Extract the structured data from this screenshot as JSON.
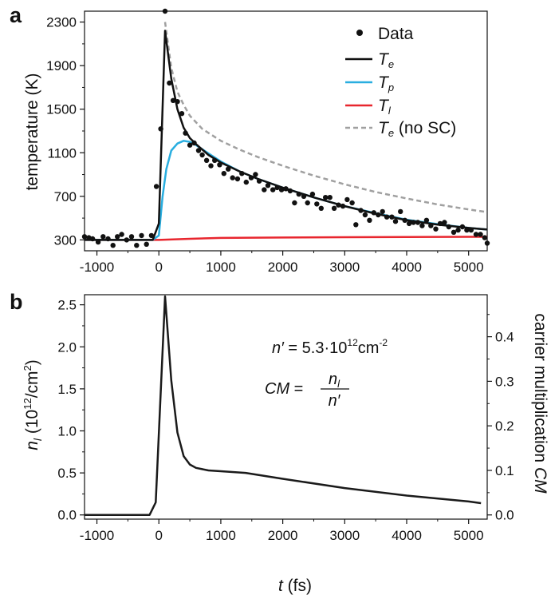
{
  "chart_data": [
    {
      "panel": "a",
      "type": "line",
      "xlabel": "",
      "ylabel": "temperature  (K)",
      "xlim": [
        -1200,
        5300
      ],
      "ylim": [
        200,
        2400
      ],
      "xticks": [
        -1000,
        0,
        1000,
        2000,
        3000,
        4000,
        5000
      ],
      "xtick_labels": [
        "-1000",
        "0",
        "1000",
        "2000",
        "3000",
        "4000",
        "5000"
      ],
      "yticks": [
        300,
        700,
        1100,
        1500,
        1900,
        2300
      ],
      "ytick_labels": [
        "300",
        "700",
        "1100",
        "1500",
        "1900",
        "2300"
      ],
      "legend_position": "top-right",
      "legend": {
        "data": "Data",
        "te_sym": "T",
        "te_sub": "e",
        "tp_sym": "T",
        "tp_sub": "p",
        "tl_sym": "T",
        "tl_sub": "l",
        "tens_sym": "T",
        "tens_sub": "e",
        "tens_suffix": " (no SC)"
      },
      "colors": {
        "data": "#111111",
        "Te": "#111111",
        "Tp": "#29aee0",
        "Tl": "#e8262e",
        "Te_noSC": "#a0a0a0"
      },
      "scatter": {
        "name": "Data",
        "x": [
          -1200,
          -1130,
          -1070,
          -980,
          -900,
          -820,
          -740,
          -670,
          -600,
          -520,
          -440,
          -360,
          -280,
          -200,
          -120,
          -40,
          30,
          100,
          170,
          230,
          300,
          370,
          430,
          500,
          570,
          640,
          700,
          770,
          840,
          900,
          980,
          1050,
          1120,
          1190,
          1270,
          1340,
          1410,
          1490,
          1560,
          1620,
          1700,
          1760,
          1840,
          1910,
          1980,
          2050,
          2120,
          2190,
          2260,
          2340,
          2400,
          2480,
          2550,
          2620,
          2690,
          2760,
          2830,
          2900,
          2970,
          3040,
          3120,
          3180,
          3260,
          3330,
          3400,
          3470,
          3540,
          3610,
          3680,
          3760,
          3820,
          3900,
          3970,
          4040,
          4110,
          4180,
          4250,
          4320,
          4390,
          4470,
          4540,
          4610,
          4680,
          4760,
          4830,
          4900,
          4970,
          5040,
          5120,
          5190,
          5260,
          5300
        ],
        "y": [
          330,
          320,
          310,
          280,
          330,
          310,
          250,
          330,
          350,
          300,
          330,
          250,
          340,
          260,
          340,
          790,
          1320,
          2400,
          1740,
          1580,
          1570,
          1460,
          1280,
          1170,
          1190,
          1120,
          1080,
          1030,
          980,
          1030,
          990,
          910,
          950,
          870,
          860,
          910,
          830,
          870,
          900,
          840,
          760,
          800,
          760,
          780,
          760,
          770,
          750,
          640,
          720,
          700,
          640,
          720,
          630,
          590,
          690,
          690,
          590,
          620,
          610,
          670,
          640,
          440,
          570,
          530,
          480,
          550,
          530,
          560,
          510,
          510,
          470,
          560,
          480,
          450,
          460,
          460,
          430,
          480,
          430,
          400,
          450,
          460,
          420,
          370,
          390,
          420,
          390,
          390,
          350,
          350,
          320,
          270
        ]
      },
      "series": [
        {
          "name": "Te",
          "x": [
            -1200,
            -100,
            0,
            100,
            200,
            300,
            400,
            500,
            600,
            800,
            1000,
            1300,
            1600,
            2000,
            2500,
            3000,
            3500,
            4000,
            4500,
            5000,
            5300
          ],
          "y": [
            300,
            300,
            450,
            2220,
            1780,
            1500,
            1330,
            1235,
            1180,
            1080,
            1010,
            930,
            860,
            780,
            690,
            610,
            540,
            480,
            440,
            410,
            395
          ]
        },
        {
          "name": "Tp",
          "x": [
            -1200,
            -100,
            0,
            60,
            120,
            200,
            300,
            400,
            500,
            600,
            800,
            1000,
            1300,
            1600,
            2000,
            2500,
            3000,
            3500,
            4000,
            4500,
            5000,
            5300
          ],
          "y": [
            300,
            300,
            340,
            700,
            950,
            1120,
            1185,
            1210,
            1200,
            1170,
            1095,
            1020,
            930,
            860,
            780,
            690,
            610,
            545,
            485,
            445,
            410,
            395
          ]
        },
        {
          "name": "Tl",
          "x": [
            -1200,
            0,
            500,
            1000,
            2000,
            3000,
            4000,
            5000,
            5300
          ],
          "y": [
            300,
            300,
            310,
            318,
            322,
            325,
            327,
            328,
            328
          ]
        },
        {
          "name": "Te (no SC)",
          "x": [
            100,
            200,
            300,
            400,
            500,
            700,
            1000,
            1300,
            1600,
            2000,
            2500,
            3000,
            3500,
            4000,
            4500,
            5000,
            5300
          ],
          "y": [
            2300,
            1880,
            1660,
            1540,
            1440,
            1320,
            1210,
            1130,
            1060,
            980,
            890,
            810,
            740,
            680,
            625,
            580,
            555
          ]
        }
      ]
    },
    {
      "panel": "b",
      "type": "line",
      "xlabel_sym": "t",
      "xlabel_unit": " (fs)",
      "ylabel_sym": "n",
      "ylabel_sub": "l",
      "ylabel_unit_pre": " (10",
      "ylabel_unit_exp": "12",
      "ylabel_unit_post": "/cm",
      "ylabel_unit_exp2": "2",
      "ylabel_unit_end": ")",
      "ylabel_right_text": "carrier multiplication ",
      "ylabel_right_sym": "CM",
      "xlim": [
        -1200,
        5300
      ],
      "ylim": [
        -0.05,
        2.62
      ],
      "ylim_right": [
        0.0,
        0.4867
      ],
      "xticks": [
        -1000,
        0,
        1000,
        2000,
        3000,
        4000,
        5000
      ],
      "xtick_labels": [
        "-1000",
        "0",
        "1000",
        "2000",
        "3000",
        "4000",
        "5000"
      ],
      "yticks": [
        0.0,
        0.5,
        1.0,
        1.5,
        2.0,
        2.5
      ],
      "ytick_labels": [
        "0.0",
        "0.5",
        "1.0",
        "1.5",
        "2.0",
        "2.5"
      ],
      "yticks_right": [
        0.0,
        0.1,
        0.2,
        0.3,
        0.4
      ],
      "ytick_labels_right": [
        "0.0",
        "0.1",
        "0.2",
        "0.3",
        "0.4"
      ],
      "annotations": {
        "nprime_sym": "n′",
        "nprime_eq": " = 5.3·10",
        "nprime_exp": "12",
        "nprime_unit": "cm",
        "nprime_unit_exp": "-2",
        "cm_lhs": "CM",
        "cm_eq": " = ",
        "cm_num_sym": "n",
        "cm_num_sub": "l",
        "cm_den": "n′"
      },
      "series": [
        {
          "name": "",
          "x": [
            -1200,
            -150,
            -50,
            100,
            200,
            300,
            400,
            500,
            600,
            800,
            1000,
            1400,
            2000,
            3000,
            4000,
            5000,
            5200
          ],
          "y": [
            0.0,
            0.0,
            0.15,
            2.6,
            1.6,
            0.98,
            0.7,
            0.6,
            0.56,
            0.53,
            0.52,
            0.5,
            0.43,
            0.32,
            0.23,
            0.16,
            0.14
          ]
        }
      ]
    }
  ]
}
